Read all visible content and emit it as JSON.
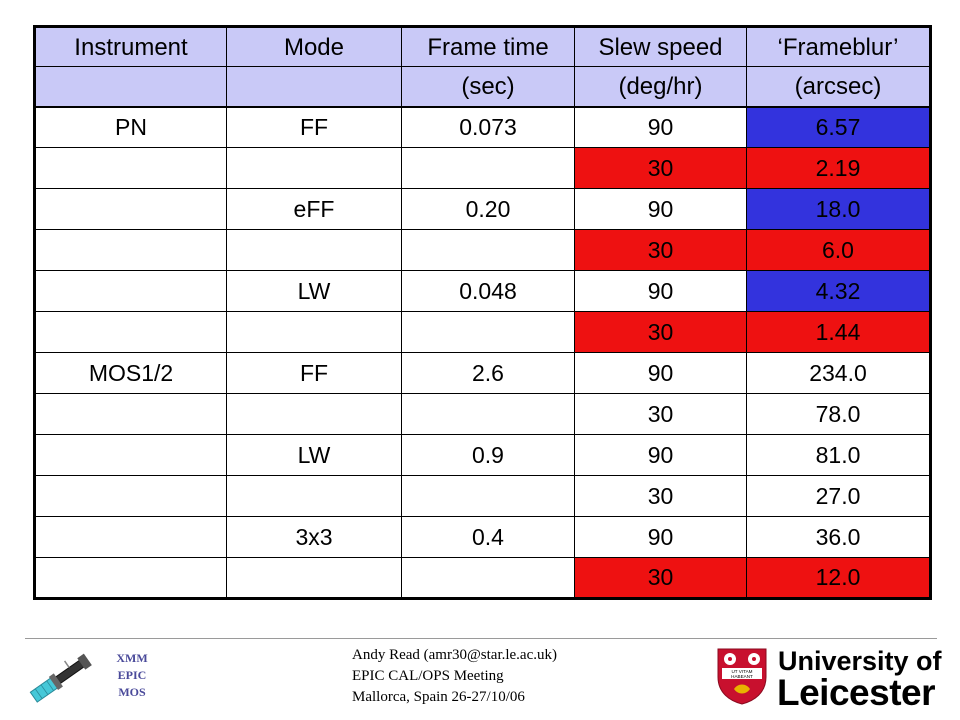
{
  "table": {
    "header_row1": [
      "Instrument",
      "Mode",
      "Frame time",
      "Slew speed",
      "‘Frameblur’"
    ],
    "header_row2": [
      "",
      "",
      "(sec)",
      "(deg/hr)",
      "(arcsec)"
    ],
    "rows": [
      {
        "cells": [
          "PN",
          "FF",
          "0.073",
          "90",
          "6.57"
        ],
        "highlight": "blue"
      },
      {
        "cells": [
          "",
          "",
          "",
          "30",
          "2.19"
        ],
        "highlight": "red"
      },
      {
        "cells": [
          "",
          "eFF",
          "0.20",
          "90",
          "18.0"
        ],
        "highlight": "blue"
      },
      {
        "cells": [
          "",
          "",
          "",
          "30",
          "6.0"
        ],
        "highlight": "red"
      },
      {
        "cells": [
          "",
          "LW",
          "0.048",
          "90",
          "4.32"
        ],
        "highlight": "blue"
      },
      {
        "cells": [
          "",
          "",
          "",
          "30",
          "1.44"
        ],
        "highlight": "red"
      },
      {
        "cells": [
          "MOS1/2",
          "FF",
          "2.6",
          "90",
          "234.0"
        ],
        "highlight": "none"
      },
      {
        "cells": [
          "",
          "",
          "",
          "30",
          "78.0"
        ],
        "highlight": "none"
      },
      {
        "cells": [
          "",
          "LW",
          "0.9",
          "90",
          "81.0"
        ],
        "highlight": "none"
      },
      {
        "cells": [
          "",
          "",
          "",
          "30",
          "27.0"
        ],
        "highlight": "none"
      },
      {
        "cells": [
          "",
          "3x3",
          "0.4",
          "90",
          "36.0"
        ],
        "highlight": "none"
      },
      {
        "cells": [
          "",
          "",
          "",
          "30",
          "12.0"
        ],
        "highlight": "red"
      }
    ]
  },
  "colors": {
    "header_bg": "#c9c9f7",
    "blue_highlight": "#3333dd",
    "red_highlight": "#ee1111"
  },
  "footer": {
    "logo_lines": [
      "XMM",
      "EPIC",
      "MOS"
    ],
    "logo_icon": "satellite-icon",
    "text_lines": [
      "Andy Read (amr30@star.le.ac.uk)",
      "EPIC CAL/OPS Meeting",
      "Mallorca, Spain 26-27/10/06"
    ],
    "university": {
      "line1": "University of",
      "line2": "Leicester",
      "crest_icon": "university-crest-icon",
      "crest_motto": "UT VITAM HABEANT"
    }
  }
}
